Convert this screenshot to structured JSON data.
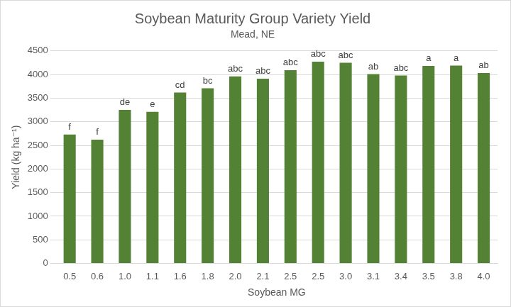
{
  "chart_data": {
    "type": "bar",
    "title": "Soybean Maturity Group Variety Yield",
    "subtitle": "Mead, NE",
    "x_label": "Soybean MG",
    "y_label": "Yield (kg ha⁻¹)",
    "categories": [
      "0.5",
      "0.6",
      "1.0",
      "1.1",
      "1.6",
      "1.8",
      "2.0",
      "2.1",
      "2.5",
      "2.5",
      "3.0",
      "3.1",
      "3.4",
      "3.5",
      "3.8",
      "4.0"
    ],
    "values": [
      2730,
      2620,
      3250,
      3210,
      3620,
      3710,
      3960,
      3910,
      4090,
      4270,
      4250,
      4010,
      3980,
      4180,
      4190,
      4030
    ],
    "annotations": [
      "f",
      "f",
      "de",
      "e",
      "cd",
      "bc",
      "abc",
      "abc",
      "abc",
      "abc",
      "abc",
      "ab",
      "abc",
      "a",
      "a",
      "ab"
    ],
    "color": "#548235",
    "ylim": [
      0,
      4500
    ],
    "yticks": [
      0,
      500,
      1000,
      1500,
      2000,
      2500,
      3000,
      3500,
      4000,
      4500
    ],
    "grid": true
  }
}
